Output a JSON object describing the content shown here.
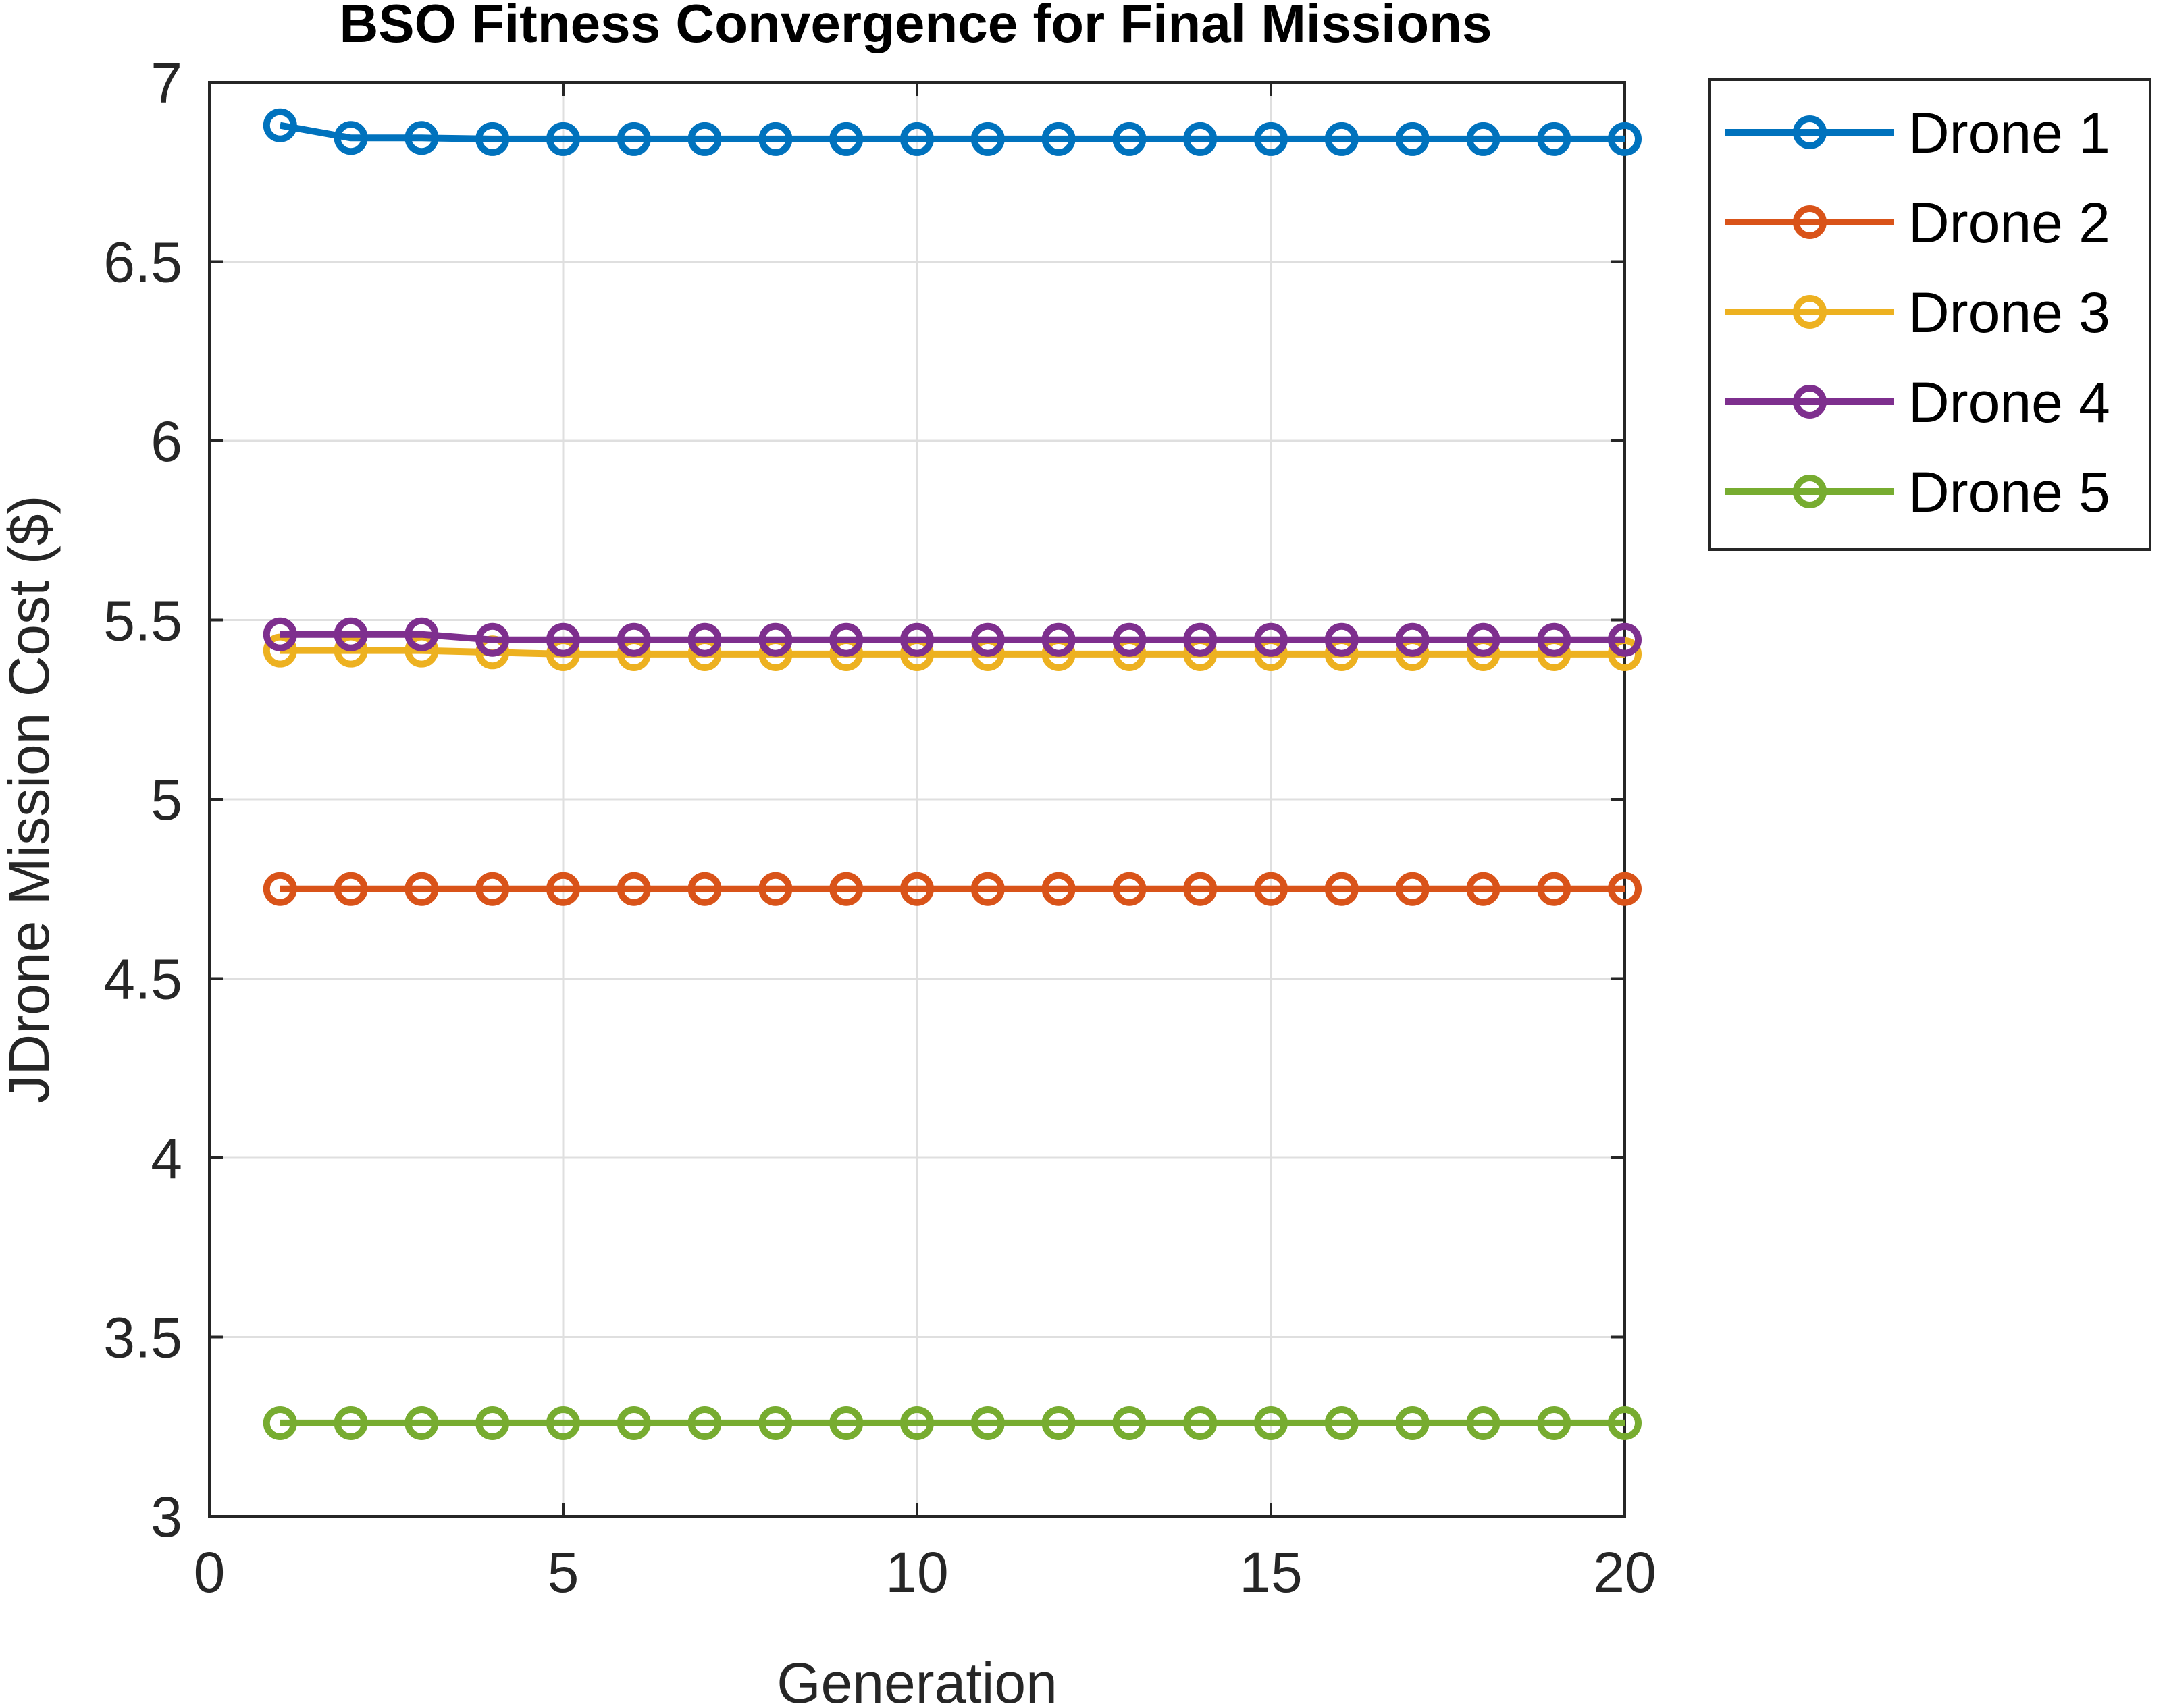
{
  "chart_data": {
    "type": "line",
    "title": "BSO Fitness Convergence for Final Missions",
    "xlabel": "Generation",
    "ylabel": "JDrone Mission Cost ($)",
    "xlim": [
      0,
      20
    ],
    "ylim": [
      3,
      7
    ],
    "xticks": [
      0,
      5,
      10,
      15,
      20
    ],
    "xtick_labels": [
      "0",
      "5",
      "10",
      "15",
      "20"
    ],
    "yticks": [
      3,
      3.5,
      4,
      4.5,
      5,
      5.5,
      6,
      6.5,
      7
    ],
    "ytick_labels": [
      "3",
      "3.5",
      "4",
      "4.5",
      "5",
      "5.5",
      "6",
      "6.5",
      "7"
    ],
    "grid": true,
    "legend_position": "outside-top-right",
    "marker": "circle-open",
    "x": [
      1,
      2,
      3,
      4,
      5,
      6,
      7,
      8,
      9,
      10,
      11,
      12,
      13,
      14,
      15,
      16,
      17,
      18,
      19,
      20
    ],
    "series": [
      {
        "name": "Drone 1",
        "color": "#0072BD",
        "values": [
          6.88,
          6.845,
          6.845,
          6.842,
          6.842,
          6.842,
          6.842,
          6.842,
          6.842,
          6.842,
          6.842,
          6.842,
          6.842,
          6.842,
          6.842,
          6.842,
          6.842,
          6.842,
          6.842,
          6.842
        ]
      },
      {
        "name": "Drone 2",
        "color": "#D95319",
        "values": [
          4.75,
          4.75,
          4.75,
          4.75,
          4.75,
          4.75,
          4.75,
          4.75,
          4.75,
          4.75,
          4.75,
          4.75,
          4.75,
          4.75,
          4.75,
          4.75,
          4.75,
          4.75,
          4.75,
          4.75
        ]
      },
      {
        "name": "Drone 3",
        "color": "#EDB120",
        "values": [
          5.415,
          5.415,
          5.415,
          5.41,
          5.405,
          5.405,
          5.405,
          5.405,
          5.405,
          5.405,
          5.405,
          5.405,
          5.405,
          5.405,
          5.405,
          5.405,
          5.405,
          5.405,
          5.405,
          5.405
        ]
      },
      {
        "name": "Drone 4",
        "color": "#7E2F8E",
        "values": [
          5.46,
          5.46,
          5.46,
          5.445,
          5.445,
          5.445,
          5.445,
          5.445,
          5.445,
          5.445,
          5.445,
          5.445,
          5.445,
          5.445,
          5.445,
          5.445,
          5.445,
          5.445,
          5.445,
          5.445
        ]
      },
      {
        "name": "Drone 5",
        "color": "#77AC30",
        "values": [
          3.26,
          3.26,
          3.26,
          3.26,
          3.26,
          3.26,
          3.26,
          3.26,
          3.26,
          3.26,
          3.26,
          3.26,
          3.26,
          3.26,
          3.26,
          3.26,
          3.26,
          3.26,
          3.26,
          3.26
        ]
      }
    ]
  }
}
